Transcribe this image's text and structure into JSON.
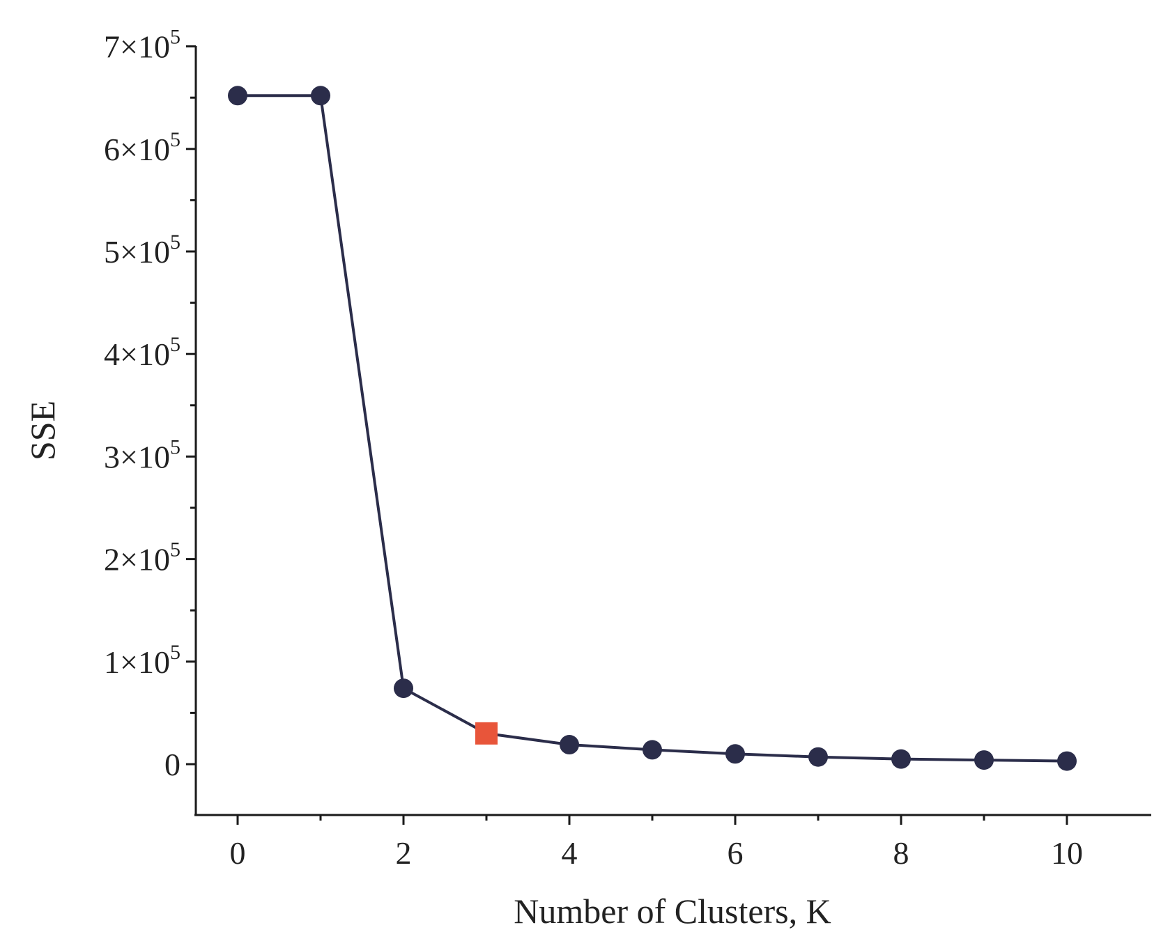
{
  "chart_data": {
    "type": "line",
    "xlabel": "Number of Clusters, K",
    "ylabel": "SSE",
    "xlim": [
      -0.5,
      11
    ],
    "ylim": [
      -50000,
      700000
    ],
    "x_major_ticks": [
      0,
      2,
      4,
      6,
      8,
      10
    ],
    "x_minor_ticks": [
      1,
      3,
      5,
      7,
      9
    ],
    "y_major_ticks": [
      {
        "value": 0,
        "label": "0"
      },
      {
        "value": 100000,
        "label": "1×10",
        "exp": "5"
      },
      {
        "value": 200000,
        "label": "2×10",
        "exp": "5"
      },
      {
        "value": 300000,
        "label": "3×10",
        "exp": "5"
      },
      {
        "value": 400000,
        "label": "4×10",
        "exp": "5"
      },
      {
        "value": 500000,
        "label": "5×10",
        "exp": "5"
      },
      {
        "value": 600000,
        "label": "6×10",
        "exp": "5"
      },
      {
        "value": 700000,
        "label": "7×10",
        "exp": "5"
      }
    ],
    "y_minor_ticks": [
      50000,
      150000,
      250000,
      350000,
      450000,
      550000,
      650000
    ],
    "grid": false,
    "series": [
      {
        "x": [
          0,
          1,
          2,
          3,
          4,
          5,
          6,
          7,
          8,
          9,
          10
        ],
        "values": [
          652000,
          652000,
          74000,
          30000,
          19000,
          14000,
          10000,
          7000,
          5000,
          4000,
          3000
        ],
        "color": "#2b2d4a",
        "marker": "circle",
        "highlight": {
          "index": 3,
          "marker": "square",
          "color": "#e8553a"
        }
      }
    ]
  }
}
